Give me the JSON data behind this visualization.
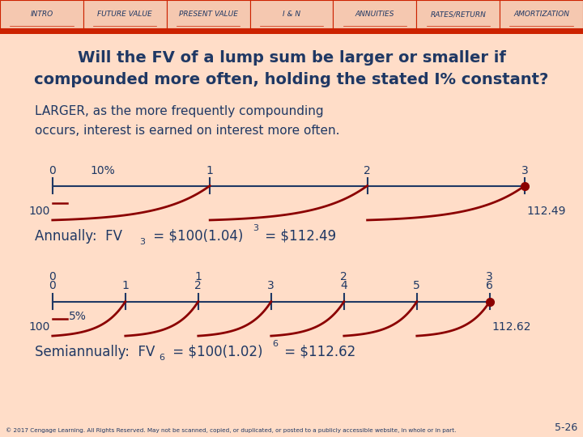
{
  "bg_color": "#FFDDC8",
  "nav_bg": "#F5C8B0",
  "nav_border_color": "#CC2200",
  "nav_items": [
    "INTRO",
    "FUTURE VALUE",
    "PRESENT VALUE",
    "I & N",
    "ANNUITIES",
    "RATES/RETURN",
    "AMORTIZATION"
  ],
  "nav_active": "FUTURE VALUE",
  "title_line1": "Will the FV of a lump sum be larger or smaller if",
  "title_line2": "compounded more often, holding the stated I% constant?",
  "answer_line1": "LARGER, as the more frequently compounding",
  "answer_line2": "occurs, interest is earned on interest more often.",
  "text_color": "#1F3864",
  "dark_red": "#8B0000",
  "timeline1_label": "10%",
  "timeline1_start_val": "100",
  "timeline1_end_val": "112.49",
  "timeline2_label": "5%",
  "timeline2_start_val": "100",
  "timeline2_end_val": "112.62",
  "footer": "© 2017 Cengage Learning. All Rights Reserved. May not be scanned, copied, or duplicated, or posted to a publicly accessible website, in whole or in part.",
  "footer_right": "5-26"
}
